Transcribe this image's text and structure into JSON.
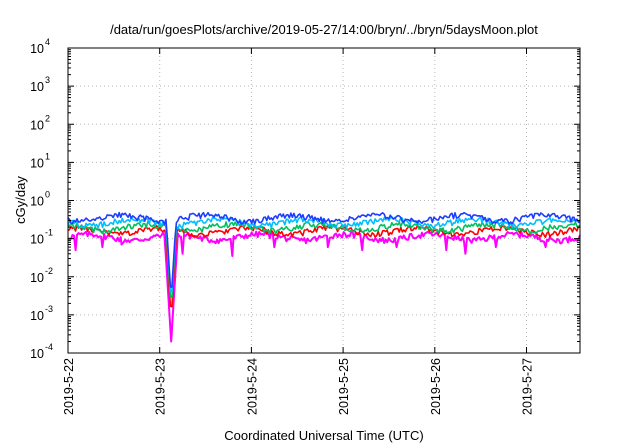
{
  "chart_data": {
    "type": "line",
    "title": "/data/run/goesPlots/archive/2019-05-27/14:00/bryn/../bryn/5daysMoon.plot",
    "xlabel": "Coordinated Universal Time (UTC)",
    "ylabel": "cGy/day",
    "yscale": "log",
    "ylim": [
      0.0001,
      10000
    ],
    "y_ticks": [
      {
        "base": "10",
        "exp": "-4",
        "value": 0.0001
      },
      {
        "base": "10",
        "exp": "-3",
        "value": 0.001
      },
      {
        "base": "10",
        "exp": "-2",
        "value": 0.01
      },
      {
        "base": "10",
        "exp": "-1",
        "value": 0.1
      },
      {
        "base": "10",
        "exp": "0",
        "value": 1
      },
      {
        "base": "10",
        "exp": "1",
        "value": 10
      },
      {
        "base": "10",
        "exp": "2",
        "value": 100
      },
      {
        "base": "10",
        "exp": "3",
        "value": 1000
      },
      {
        "base": "10",
        "exp": "4",
        "value": 10000
      }
    ],
    "x_range_days": [
      "2019-05-22T00:00",
      "2019-05-27T14:00"
    ],
    "x_ticks": [
      "2019-5-22",
      "2019-5-23",
      "2019-5-24",
      "2019-5-25",
      "2019-5-26",
      "2019-5-27"
    ],
    "grid": true,
    "legend": "none",
    "series": [
      {
        "color": "#ff00ff",
        "base_value": 0.11,
        "dropouts": [
          [
            "2019-05-22T02:00",
            0.05
          ],
          [
            "2019-05-22T09:00",
            0.06
          ],
          [
            "2019-05-22T14:00",
            0.07
          ],
          [
            "2019-05-23T03:00",
            0.0002
          ],
          [
            "2019-05-23T06:00",
            0.04
          ],
          [
            "2019-05-23T19:00",
            0.035
          ],
          [
            "2019-05-24T06:00",
            0.06
          ],
          [
            "2019-05-24T20:00",
            0.06
          ],
          [
            "2019-05-25T05:00",
            0.05
          ],
          [
            "2019-05-25T14:00",
            0.06
          ],
          [
            "2019-05-26T03:00",
            0.05
          ],
          [
            "2019-05-26T08:00",
            0.04
          ],
          [
            "2019-05-26T16:00",
            0.06
          ],
          [
            "2019-05-27T05:00",
            0.06
          ]
        ]
      },
      {
        "color": "#ff0000",
        "base_value": 0.16
      },
      {
        "color": "#00c060",
        "base_value": 0.2
      },
      {
        "color": "#00bfff",
        "base_value": 0.27
      },
      {
        "color": "#1e3cff",
        "base_value": 0.35
      }
    ],
    "events": [
      {
        "time": "2019-05-23T03:00",
        "min_value": 0.0002,
        "note": "deep dropout visible in all series"
      }
    ]
  }
}
